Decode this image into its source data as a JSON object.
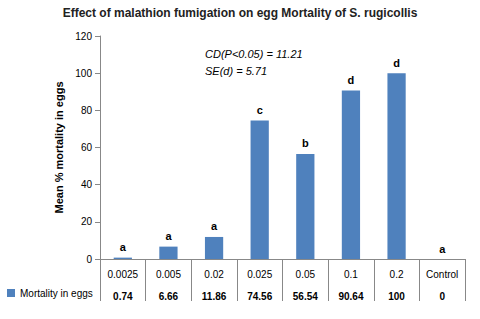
{
  "chart_data": {
    "type": "bar",
    "title": "Effect of malathion fumigation on egg Mortality of S. rugicollis",
    "y_label": "Mean % mortality in eggs",
    "annotations": [
      "CD(P<0.05) = 11.21",
      "SE(d) = 5.71"
    ],
    "categories": [
      "0.0025",
      "0.005",
      "0.02",
      "0.025",
      "0.05",
      "0.1",
      "0.2",
      "Control"
    ],
    "series": [
      {
        "name": "Mortality in eggs",
        "color": "#4f81bd",
        "values": [
          0.74,
          6.66,
          11.86,
          74.56,
          56.54,
          90.64,
          100,
          0
        ],
        "group_letters": [
          "a",
          "a",
          "a",
          "c",
          "b",
          "d",
          "d",
          "a"
        ]
      }
    ],
    "ylim": [
      0,
      120
    ],
    "yticks": [
      0,
      20,
      40,
      60,
      80,
      100,
      120
    ],
    "grid": false,
    "data_labels": false
  }
}
